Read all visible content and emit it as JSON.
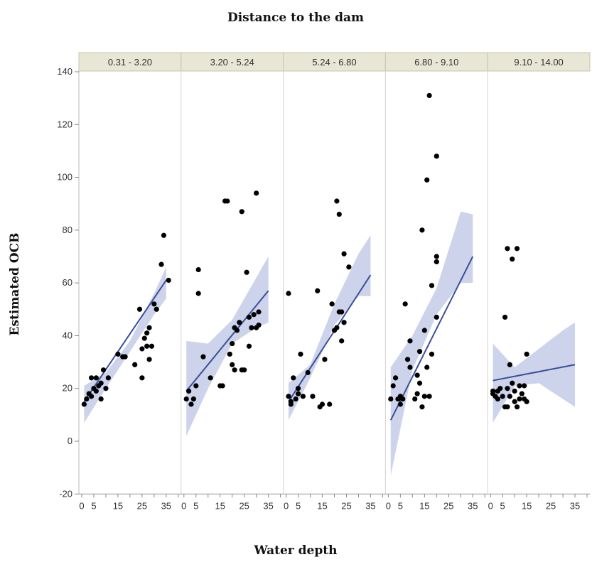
{
  "chart_data": {
    "type": "scatter",
    "title": "Distance to the dam",
    "xlabel": "Water depth",
    "ylabel": "Estimated OCB",
    "ylim": [
      -20,
      140
    ],
    "xlim": [
      0,
      40
    ],
    "y_ticks": [
      -20,
      0,
      20,
      40,
      60,
      80,
      100,
      120,
      140
    ],
    "x_ticks": [
      0,
      5,
      15,
      25,
      35
    ],
    "x_tick_labels": [
      "0",
      "5",
      "15",
      "25",
      "35"
    ],
    "y_tick_labels": [
      "-20",
      "0",
      "20",
      "40",
      "60",
      "80",
      "100",
      "120",
      "140"
    ],
    "grid": false,
    "colors": {
      "point": "#000000",
      "fit_line": "#3a4f99",
      "ci_band": "#c3cbe8",
      "header_bg": "#e8e6d4"
    },
    "panels": [
      {
        "label": "0.31 - 3.20",
        "fit": {
          "x": [
            1,
            35
          ],
          "y": [
            15,
            61
          ]
        },
        "ci_lower": [
          [
            1,
            7
          ],
          [
            10,
            20
          ],
          [
            20,
            34
          ],
          [
            30,
            48
          ],
          [
            35,
            54
          ]
        ],
        "ci_upper": [
          [
            1,
            21
          ],
          [
            10,
            26
          ],
          [
            20,
            38
          ],
          [
            30,
            56
          ],
          [
            35,
            66
          ]
        ],
        "points": [
          [
            1,
            14
          ],
          [
            2,
            16
          ],
          [
            3,
            18
          ],
          [
            4,
            17
          ],
          [
            4,
            24
          ],
          [
            5,
            20
          ],
          [
            6,
            19
          ],
          [
            6,
            24
          ],
          [
            7,
            21
          ],
          [
            8,
            16
          ],
          [
            8,
            22
          ],
          [
            9,
            27
          ],
          [
            10,
            20
          ],
          [
            11,
            24
          ],
          [
            15,
            33
          ],
          [
            17,
            32
          ],
          [
            18,
            32
          ],
          [
            22,
            29
          ],
          [
            24,
            50
          ],
          [
            25,
            35
          ],
          [
            25,
            24
          ],
          [
            26,
            39
          ],
          [
            27,
            36
          ],
          [
            27,
            41
          ],
          [
            28,
            43
          ],
          [
            28,
            31
          ],
          [
            29,
            36
          ],
          [
            30,
            52
          ],
          [
            31,
            50
          ],
          [
            33,
            67
          ],
          [
            34,
            78
          ],
          [
            36,
            61
          ]
        ]
      },
      {
        "label": "3.20 - 5.24",
        "fit": {
          "x": [
            1,
            35
          ],
          "y": [
            19,
            57
          ]
        },
        "ci_lower": [
          [
            1,
            2
          ],
          [
            10,
            20
          ],
          [
            20,
            37
          ],
          [
            30,
            43
          ],
          [
            35,
            45
          ]
        ],
        "ci_upper": [
          [
            1,
            38
          ],
          [
            10,
            37
          ],
          [
            20,
            46
          ],
          [
            30,
            62
          ],
          [
            35,
            70
          ]
        ],
        "points": [
          [
            1,
            16
          ],
          [
            2,
            19
          ],
          [
            3,
            14
          ],
          [
            4,
            16
          ],
          [
            5,
            21
          ],
          [
            6,
            56
          ],
          [
            6,
            65
          ],
          [
            8,
            32
          ],
          [
            11,
            24
          ],
          [
            15,
            21
          ],
          [
            16,
            21
          ],
          [
            17,
            91
          ],
          [
            18,
            91
          ],
          [
            19,
            33
          ],
          [
            20,
            29
          ],
          [
            20,
            37
          ],
          [
            21,
            27
          ],
          [
            21,
            43
          ],
          [
            22,
            42
          ],
          [
            23,
            45
          ],
          [
            24,
            27
          ],
          [
            24,
            87
          ],
          [
            25,
            27
          ],
          [
            26,
            64
          ],
          [
            27,
            36
          ],
          [
            27,
            47
          ],
          [
            28,
            43
          ],
          [
            29,
            48
          ],
          [
            30,
            94
          ],
          [
            30,
            43
          ],
          [
            31,
            49
          ],
          [
            31,
            44
          ]
        ]
      },
      {
        "label": "5.24 - 6.80",
        "fit": {
          "x": [
            1,
            35
          ],
          "y": [
            15,
            63
          ]
        },
        "ci_lower": [
          [
            1,
            8
          ],
          [
            10,
            24
          ],
          [
            20,
            44
          ],
          [
            30,
            55
          ],
          [
            35,
            55
          ]
        ],
        "ci_upper": [
          [
            1,
            22
          ],
          [
            10,
            29
          ],
          [
            20,
            52
          ],
          [
            30,
            71
          ],
          [
            35,
            78
          ]
        ],
        "points": [
          [
            1,
            17
          ],
          [
            1,
            56
          ],
          [
            2,
            14
          ],
          [
            2,
            15
          ],
          [
            3,
            24
          ],
          [
            4,
            16
          ],
          [
            5,
            20
          ],
          [
            5,
            18
          ],
          [
            6,
            33
          ],
          [
            7,
            17
          ],
          [
            9,
            26
          ],
          [
            11,
            17
          ],
          [
            13,
            57
          ],
          [
            14,
            13
          ],
          [
            15,
            14
          ],
          [
            16,
            31
          ],
          [
            18,
            14
          ],
          [
            19,
            52
          ],
          [
            20,
            42
          ],
          [
            21,
            43
          ],
          [
            21,
            91
          ],
          [
            22,
            49
          ],
          [
            22,
            86
          ],
          [
            23,
            49
          ],
          [
            23,
            38
          ],
          [
            24,
            45
          ],
          [
            24,
            71
          ],
          [
            26,
            66
          ]
        ]
      },
      {
        "label": "6.80 - 9.10",
        "fit": {
          "x": [
            1,
            35
          ],
          "y": [
            8,
            70
          ]
        },
        "ci_lower": [
          [
            1,
            -13
          ],
          [
            10,
            27
          ],
          [
            20,
            48
          ],
          [
            30,
            60
          ],
          [
            35,
            60
          ]
        ],
        "ci_upper": [
          [
            1,
            28
          ],
          [
            10,
            40
          ],
          [
            20,
            58
          ],
          [
            30,
            87
          ],
          [
            35,
            86
          ]
        ],
        "points": [
          [
            1,
            16
          ],
          [
            2,
            21
          ],
          [
            3,
            24
          ],
          [
            4,
            16
          ],
          [
            5,
            17
          ],
          [
            5,
            14
          ],
          [
            6,
            16
          ],
          [
            7,
            52
          ],
          [
            8,
            31
          ],
          [
            9,
            38
          ],
          [
            9,
            28
          ],
          [
            11,
            16
          ],
          [
            12,
            18
          ],
          [
            12,
            25
          ],
          [
            13,
            34
          ],
          [
            13,
            22
          ],
          [
            14,
            13
          ],
          [
            14,
            80
          ],
          [
            15,
            17
          ],
          [
            15,
            42
          ],
          [
            16,
            99
          ],
          [
            16,
            28
          ],
          [
            17,
            131
          ],
          [
            17,
            17
          ],
          [
            18,
            33
          ],
          [
            18,
            59
          ],
          [
            20,
            108
          ],
          [
            20,
            70
          ],
          [
            20,
            68
          ],
          [
            20,
            47
          ]
        ]
      },
      {
        "label": "9.10 - 14.00",
        "fit": {
          "x": [
            1,
            35
          ],
          "y": [
            23,
            29
          ]
        },
        "ci_lower": [
          [
            1,
            7
          ],
          [
            10,
            21
          ],
          [
            20,
            22
          ],
          [
            30,
            16
          ],
          [
            35,
            13
          ]
        ],
        "ci_upper": [
          [
            1,
            37
          ],
          [
            10,
            28
          ],
          [
            20,
            35
          ],
          [
            30,
            42
          ],
          [
            35,
            45
          ]
        ],
        "points": [
          [
            1,
            18
          ],
          [
            1,
            19
          ],
          [
            2,
            17
          ],
          [
            3,
            19
          ],
          [
            3,
            16
          ],
          [
            4,
            20
          ],
          [
            5,
            17
          ],
          [
            6,
            47
          ],
          [
            6,
            13
          ],
          [
            7,
            73
          ],
          [
            7,
            13
          ],
          [
            7,
            20
          ],
          [
            8,
            29
          ],
          [
            8,
            17
          ],
          [
            9,
            69
          ],
          [
            9,
            22
          ],
          [
            10,
            19
          ],
          [
            10,
            15
          ],
          [
            11,
            73
          ],
          [
            11,
            13
          ],
          [
            12,
            16
          ],
          [
            12,
            21
          ],
          [
            13,
            18
          ],
          [
            14,
            16
          ],
          [
            14,
            21
          ],
          [
            15,
            33
          ],
          [
            15,
            15
          ]
        ]
      }
    ]
  }
}
